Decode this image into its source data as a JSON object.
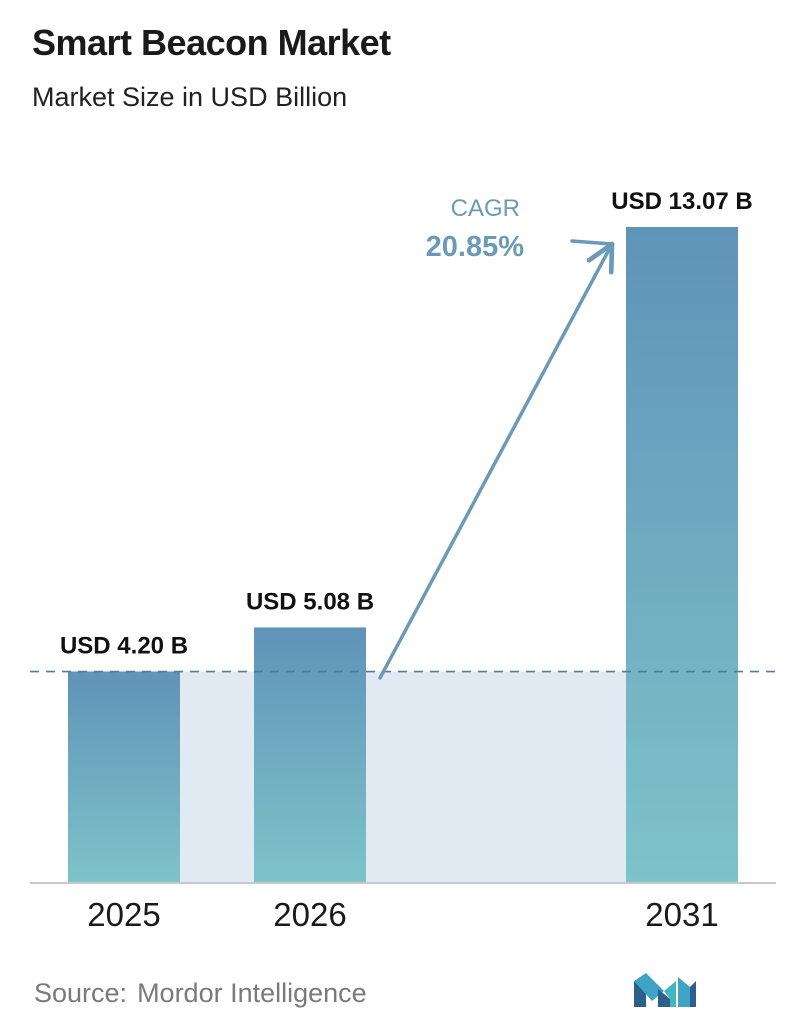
{
  "header": {
    "title": "Smart Beacon Market",
    "subtitle": "Market Size in USD Billion"
  },
  "chart_data": {
    "type": "bar",
    "title": "Smart Beacon Market",
    "subtitle": "Market Size in USD Billion",
    "categories": [
      "2025",
      "2026",
      "2031"
    ],
    "values": [
      4.2,
      5.08,
      13.07
    ],
    "data_labels": [
      "USD 4.20 B",
      "USD 5.08 B",
      "USD 13.07 B"
    ],
    "unit": "USD Billion",
    "reference_line_value": 4.2,
    "annotation": {
      "label": "CAGR",
      "value": "20.85%"
    },
    "ylim": [
      0,
      13.07
    ],
    "grid": false,
    "legend": "none",
    "colors": {
      "bar_top": "#5f93b8",
      "bar_bottom": "#7ec3c9",
      "band": "#e1e9f2",
      "reference_line": "#4d7d9c",
      "axis": "#c8c8c8",
      "cagr": "#6b9ab9"
    }
  },
  "footer": {
    "source_prefix": "Source:",
    "source_name": "Mordor Intelligence",
    "logo_icon": "mordor-intelligence-logo"
  }
}
